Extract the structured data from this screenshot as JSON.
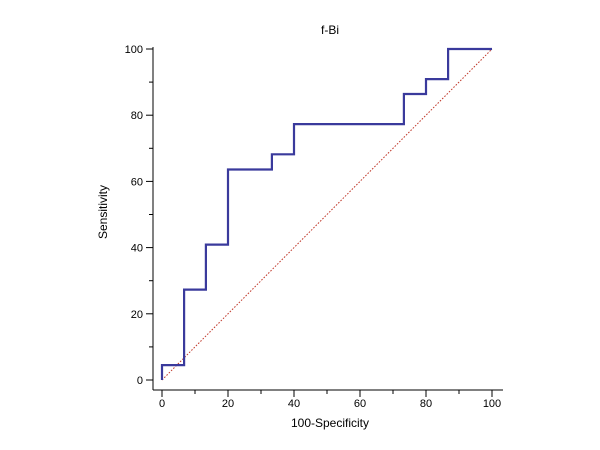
{
  "chart_data": {
    "type": "line",
    "title": "f-Bi",
    "xlabel": "100-Specificity",
    "ylabel": "Sensitivity",
    "xlim": [
      0,
      100
    ],
    "ylim": [
      0,
      100
    ],
    "x_ticks": [
      0,
      20,
      40,
      60,
      80,
      100
    ],
    "y_ticks": [
      0,
      20,
      40,
      60,
      80,
      100
    ],
    "x_tick_labels": [
      "0",
      "20",
      "40",
      "60",
      "80",
      "100"
    ],
    "y_tick_labels": [
      "0",
      "20",
      "40",
      "60",
      "80",
      "100"
    ],
    "grid": false,
    "series": [
      {
        "role": "roc-curve",
        "step": true,
        "color": "#3a3a9c",
        "points": [
          [
            0,
            0
          ],
          [
            0,
            4.5
          ],
          [
            6.7,
            4.5
          ],
          [
            6.7,
            27.3
          ],
          [
            13.3,
            27.3
          ],
          [
            13.3,
            40.9
          ],
          [
            20,
            40.9
          ],
          [
            20,
            63.6
          ],
          [
            33.3,
            63.6
          ],
          [
            33.3,
            68.2
          ],
          [
            40,
            68.2
          ],
          [
            40,
            77.3
          ],
          [
            73.3,
            77.3
          ],
          [
            73.3,
            86.4
          ],
          [
            80,
            86.4
          ],
          [
            80,
            90.9
          ],
          [
            86.7,
            90.9
          ],
          [
            86.7,
            100
          ],
          [
            100,
            100
          ]
        ]
      },
      {
        "role": "reference-diagonal",
        "color": "#c0392b",
        "points": [
          [
            0,
            0
          ],
          [
            100,
            100
          ]
        ]
      }
    ]
  }
}
